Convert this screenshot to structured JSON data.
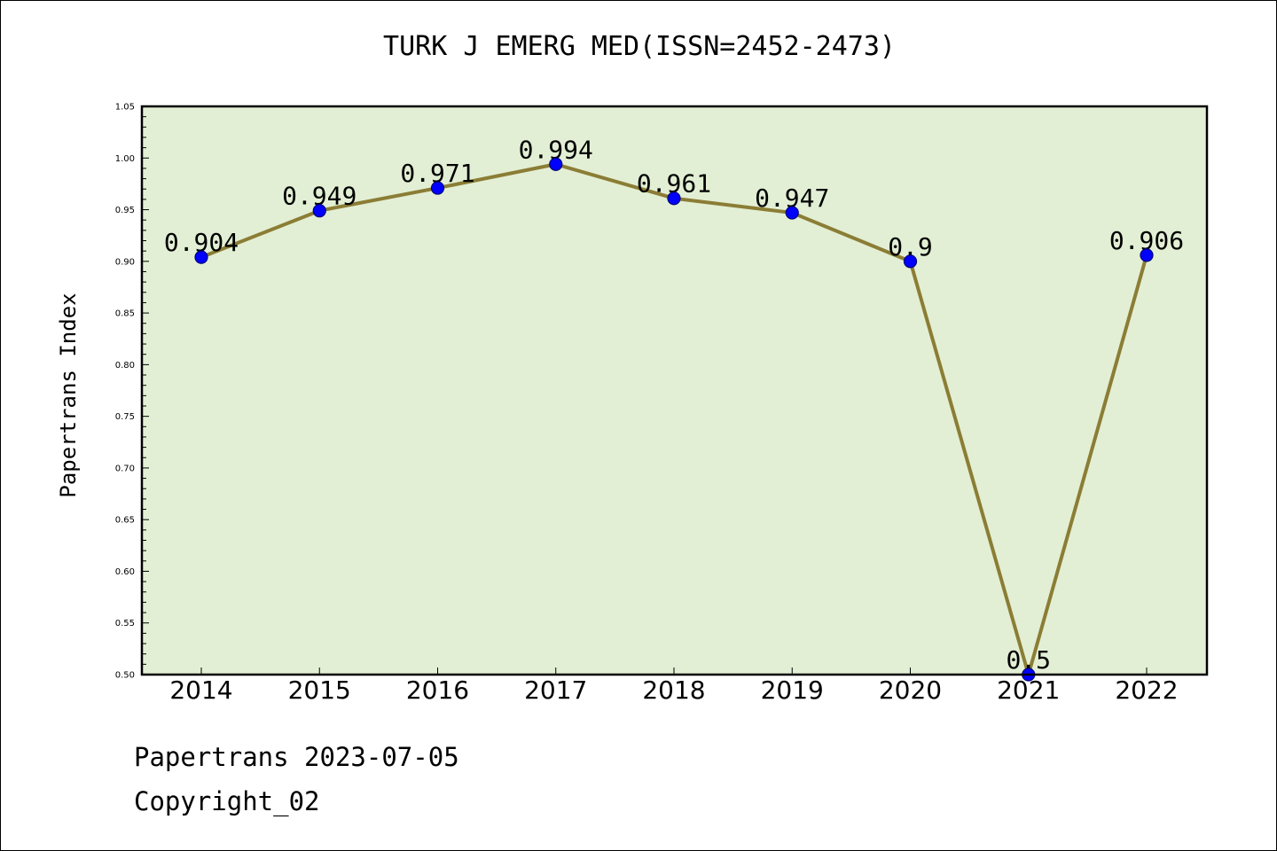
{
  "chart_data": {
    "type": "line",
    "title": "TURK J EMERG MED(ISSN=2452-2473)",
    "xlabel": "",
    "ylabel": "Papertrans Index",
    "categories": [
      "2014",
      "2015",
      "2016",
      "2017",
      "2018",
      "2019",
      "2020",
      "2021",
      "2022"
    ],
    "series": [
      {
        "values": [
          0.904,
          0.949,
          0.971,
          0.994,
          0.961,
          0.947,
          0.9,
          0.5,
          0.906
        ],
        "labels": [
          "0.904",
          "0.949",
          "0.971",
          "0.994",
          "0.961",
          "0.947",
          "0.9",
          "0.5",
          "0.906"
        ]
      }
    ],
    "ylim": [
      0.5,
      1.05
    ],
    "yticks": [
      "0.50",
      "0.55",
      "0.60",
      "0.65",
      "0.70",
      "0.75",
      "0.80",
      "0.85",
      "0.90",
      "0.95",
      "1.00",
      "1.05"
    ],
    "grid": false,
    "colors": {
      "plot_background": "#e2efd4",
      "line": "#8b7d35",
      "marker_fill": "#0000ff",
      "marker_edge": "#00007a"
    }
  },
  "footer": {
    "date_line": "Papertrans 2023-07-05",
    "copyright": "Copyright_02"
  }
}
